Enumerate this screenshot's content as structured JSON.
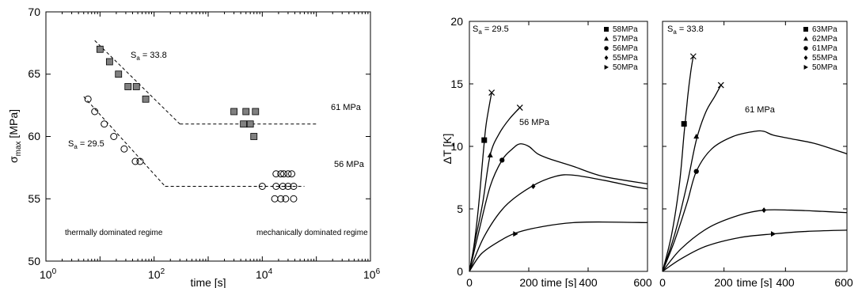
{
  "chart_data": [
    {
      "type": "scatter",
      "xscale": "log",
      "xlim": [
        1,
        1000000
      ],
      "ylim": [
        50,
        70
      ],
      "xticks": [
        "10^0",
        "10^2",
        "10^4",
        "10^6"
      ],
      "yticks": [
        "50",
        "55",
        "60",
        "65",
        "70"
      ],
      "xlabel": "time [s]",
      "ylabel": "σmax [MPa]",
      "series": [
        {
          "name": "S_a = 33.8",
          "marker": "square-filled",
          "points": [
            [
              10,
              67
            ],
            [
              15,
              66
            ],
            [
              22,
              65
            ],
            [
              33,
              64
            ],
            [
              47,
              64
            ],
            [
              70,
              63
            ],
            [
              3000,
              62
            ],
            [
              4500,
              61
            ],
            [
              5000,
              62
            ],
            [
              6000,
              61
            ],
            [
              7500,
              62
            ],
            [
              7000,
              60
            ]
          ]
        },
        {
          "name": "S_a = 29.5",
          "marker": "circle-open",
          "points": [
            [
              6,
              63
            ],
            [
              8,
              62
            ],
            [
              12,
              61
            ],
            [
              18,
              60
            ],
            [
              28,
              59
            ],
            [
              45,
              58
            ],
            [
              55,
              58
            ],
            [
              10000,
              56
            ],
            [
              18000,
              57
            ],
            [
              22000,
              57
            ],
            [
              25000,
              57
            ],
            [
              30000,
              57
            ],
            [
              35000,
              57
            ],
            [
              18000,
              56
            ],
            [
              24000,
              56
            ],
            [
              30000,
              56
            ],
            [
              38000,
              56
            ],
            [
              17000,
              55
            ],
            [
              22000,
              55
            ],
            [
              27000,
              55
            ],
            [
              38000,
              55
            ]
          ]
        }
      ],
      "fit_lines": [
        {
          "points": [
            [
              8,
              67.7
            ],
            [
              300,
              61
            ]
          ],
          "style": "dashed"
        },
        {
          "points": [
            [
              300,
              61
            ],
            [
              100000,
              61
            ]
          ],
          "style": "dashed"
        },
        {
          "points": [
            [
              5,
              63.2
            ],
            [
              160,
              56
            ]
          ],
          "style": "dashed"
        },
        {
          "points": [
            [
              160,
              56
            ],
            [
              60000,
              56
            ]
          ],
          "style": "dashed"
        }
      ],
      "annotations": {
        "sa_upper": "S",
        "sa_upper_sub": "a",
        "sa_upper_val": " = 33.8",
        "sa_lower": "S",
        "sa_lower_sub": "a",
        "sa_lower_val": " = 29.5",
        "level_upper": "61 MPa",
        "level_lower": "56 MPa",
        "regime_left": "thermally dominated regime",
        "regime_right": "mechanically dominated regime"
      }
    },
    {
      "type": "line",
      "xlim": [
        0,
        600
      ],
      "ylim": [
        0,
        20
      ],
      "xticks": [
        "0",
        "200",
        "400",
        "600"
      ],
      "yticks": [
        "0",
        "5",
        "10",
        "15",
        "20"
      ],
      "xlabel": "time [s]",
      "ylabel": "ΔT [K]",
      "sa_label": "S",
      "sa_sub": "a",
      "sa_val": " = 29.5",
      "curve_label": "56 MPa",
      "legend": [
        "58MPa",
        "57MPa",
        "56MPa",
        "55MPa",
        "50MPa"
      ],
      "markers": [
        "square",
        "triangle",
        "circle",
        "diamond",
        "triangle-right"
      ],
      "series": [
        {
          "name": "58MPa",
          "points": [
            [
              0,
              0
            ],
            [
              15,
              2
            ],
            [
              30,
              5
            ],
            [
              45,
              9
            ],
            [
              55,
              11.5
            ],
            [
              65,
              13
            ],
            [
              75,
              14.3
            ]
          ],
          "marker_at": [
            50,
            10.5
          ],
          "end_cross": [
            75,
            14.3
          ]
        },
        {
          "name": "57MPa",
          "points": [
            [
              0,
              0
            ],
            [
              20,
              2.5
            ],
            [
              45,
              5.5
            ],
            [
              70,
              9.3
            ],
            [
              100,
              11
            ],
            [
              135,
              12.2
            ],
            [
              170,
              13.1
            ]
          ],
          "marker_at": [
            70,
            9.3
          ],
          "end_cross": [
            170,
            13.1
          ]
        },
        {
          "name": "56MPa",
          "points": [
            [
              0,
              0
            ],
            [
              30,
              3
            ],
            [
              70,
              6.8
            ],
            [
              110,
              8.9
            ],
            [
              145,
              9.8
            ],
            [
              170,
              10.2
            ],
            [
              200,
              10
            ],
            [
              230,
              9.4
            ],
            [
              270,
              9
            ],
            [
              350,
              8.4
            ],
            [
              450,
              7.6
            ],
            [
              600,
              7
            ]
          ],
          "marker_at": [
            110,
            8.9
          ]
        },
        {
          "name": "55MPa",
          "points": [
            [
              0,
              0
            ],
            [
              50,
              2.8
            ],
            [
              120,
              5.2
            ],
            [
              210,
              6.8
            ],
            [
              290,
              7.6
            ],
            [
              350,
              7.7
            ],
            [
              450,
              7.3
            ],
            [
              550,
              6.8
            ],
            [
              600,
              6.6
            ]
          ],
          "marker_at": [
            215,
            6.8
          ]
        },
        {
          "name": "50MPa",
          "points": [
            [
              0,
              0
            ],
            [
              40,
              1.4
            ],
            [
              100,
              2.4
            ],
            [
              160,
              3.1
            ],
            [
              250,
              3.6
            ],
            [
              350,
              3.9
            ],
            [
              450,
              3.95
            ],
            [
              600,
              3.9
            ]
          ],
          "marker_at": [
            155,
            3.0
          ]
        }
      ]
    },
    {
      "type": "line",
      "xlim": [
        0,
        600
      ],
      "ylim": [
        0,
        20
      ],
      "xticks": [
        "0",
        "200",
        "400",
        "600"
      ],
      "yticks": [],
      "xlabel": "time [s]",
      "sa_label": "S",
      "sa_sub": "a",
      "sa_val": " = 33.8",
      "curve_label": "61 MPa",
      "legend": [
        "63MPa",
        "62MPa",
        "61MPa",
        "55MPa",
        "50MPa"
      ],
      "markers": [
        "square",
        "triangle",
        "circle",
        "diamond",
        "triangle-right"
      ],
      "series": [
        {
          "name": "63MPa",
          "points": [
            [
              0,
              0
            ],
            [
              30,
              3
            ],
            [
              55,
              7
            ],
            [
              70,
              11
            ],
            [
              82,
              14
            ],
            [
              92,
              16
            ],
            [
              100,
              17.2
            ]
          ],
          "marker_at": [
            70,
            11.8
          ],
          "end_cross": [
            100,
            17.2
          ]
        },
        {
          "name": "62MPa",
          "points": [
            [
              0,
              0
            ],
            [
              40,
              3
            ],
            [
              80,
              7
            ],
            [
              110,
              10.5
            ],
            [
              140,
              12.7
            ],
            [
              170,
              14
            ],
            [
              190,
              14.9
            ]
          ],
          "marker_at": [
            110,
            10.8
          ],
          "end_cross": [
            190,
            14.9
          ]
        },
        {
          "name": "61MPa",
          "points": [
            [
              0,
              0
            ],
            [
              40,
              2.5
            ],
            [
              80,
              5.5
            ],
            [
              110,
              8
            ],
            [
              160,
              9.8
            ],
            [
              230,
              10.8
            ],
            [
              300,
              11.2
            ],
            [
              330,
              11.2
            ],
            [
              360,
              10.9
            ],
            [
              420,
              10.6
            ],
            [
              500,
              10.2
            ],
            [
              600,
              9.4
            ]
          ],
          "marker_at": [
            110,
            8
          ]
        },
        {
          "name": "55MPa",
          "points": [
            [
              0,
              0
            ],
            [
              60,
              1.8
            ],
            [
              150,
              3.5
            ],
            [
              250,
              4.5
            ],
            [
              330,
              4.9
            ],
            [
              420,
              4.9
            ],
            [
              520,
              4.8
            ],
            [
              600,
              4.7
            ]
          ],
          "marker_at": [
            330,
            4.9
          ]
        },
        {
          "name": "50MPa",
          "points": [
            [
              0,
              0
            ],
            [
              60,
              1
            ],
            [
              140,
              2
            ],
            [
              250,
              2.7
            ],
            [
              360,
              3
            ],
            [
              470,
              3.2
            ],
            [
              600,
              3.3
            ]
          ],
          "marker_at": [
            360,
            3
          ]
        }
      ]
    }
  ]
}
